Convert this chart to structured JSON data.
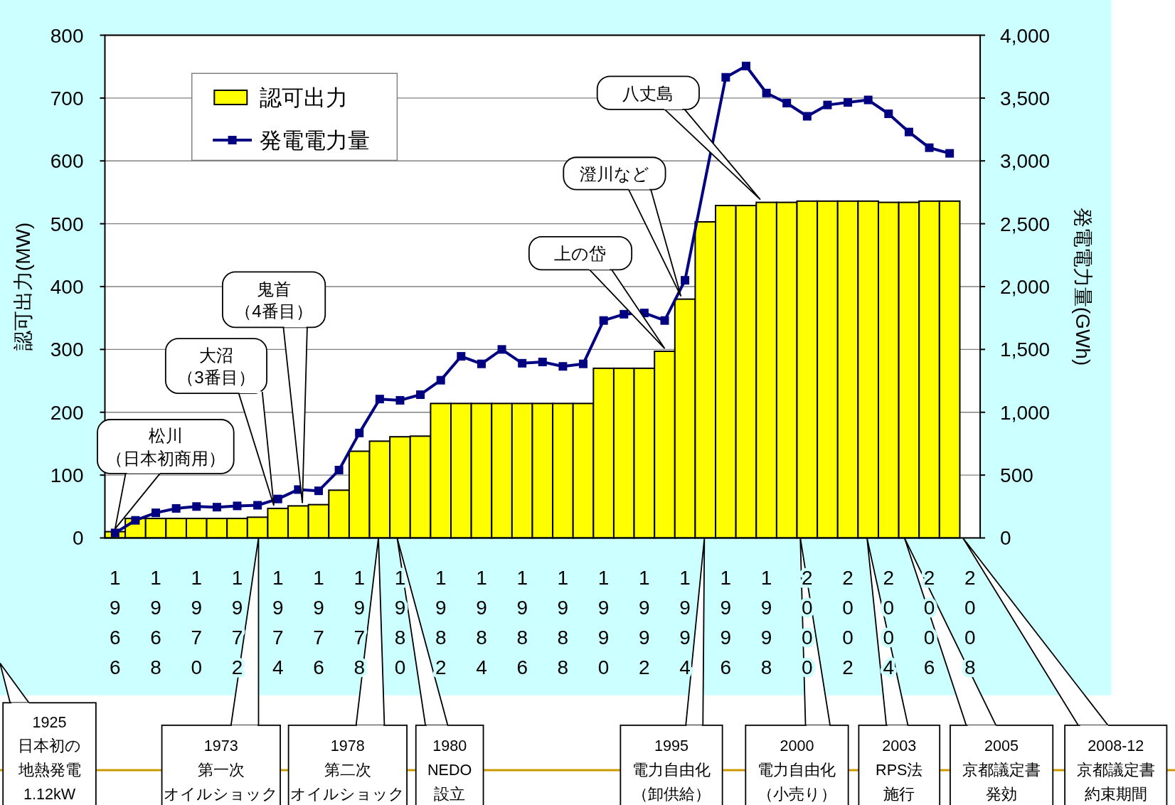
{
  "chart_data": {
    "type": "bar",
    "ylabel": "認可出力(MW)",
    "y2label": "発電電力量(GWh)",
    "categories": [
      "1966",
      null,
      "1968",
      null,
      "1970",
      null,
      "1972",
      null,
      "1974",
      null,
      "1976",
      null,
      "1978",
      null,
      "1980",
      null,
      "1982",
      null,
      "1984",
      null,
      "1986",
      null,
      "1988",
      null,
      "1990",
      null,
      "1992",
      null,
      "1994",
      null,
      "1996",
      null,
      "1998",
      null,
      "2000",
      null,
      "2002",
      null,
      "2004",
      null,
      "2006",
      null,
      "2008"
    ],
    "series": [
      {
        "name": "認可出力",
        "color": "#ffff00",
        "values": [
          10,
          31,
          31,
          31,
          31,
          31,
          31,
          33,
          47,
          51,
          53,
          76,
          138,
          154,
          161,
          162,
          214,
          214,
          214,
          214,
          214,
          214,
          214,
          214,
          270,
          270,
          270,
          297,
          380,
          503,
          529,
          529,
          534,
          534,
          536,
          536,
          536,
          536,
          534,
          534,
          536,
          536,
          null
        ]
      },
      {
        "name": "発電電力量",
        "type": "line",
        "axis": "y2",
        "color": "#000080",
        "marker": "square",
        "values": [
          40,
          140,
          200,
          235,
          250,
          245,
          255,
          260,
          310,
          385,
          375,
          540,
          835,
          1105,
          1095,
          1140,
          1255,
          1445,
          1385,
          1500,
          1390,
          1400,
          1365,
          1385,
          1730,
          1780,
          1790,
          1730,
          2050,
          null,
          3665,
          3755,
          3540,
          3460,
          3355,
          3445,
          3465,
          3485,
          3375,
          3230,
          3105,
          3060,
          null
        ]
      }
    ],
    "ylim": [
      0,
      800
    ],
    "yticks": [
      0,
      100,
      200,
      300,
      400,
      500,
      600,
      700,
      800
    ],
    "y2lim": [
      0,
      4000
    ],
    "y2ticks": [
      0,
      {
        "value": 500,
        "label": "500"
      },
      {
        "value": 1000,
        "label": "1,000"
      },
      {
        "value": 1500,
        "label": "1,500"
      },
      {
        "value": 2000,
        "label": "2,000"
      },
      {
        "value": 2500,
        "label": "2,500"
      },
      {
        "value": 3000,
        "label": "3,000"
      },
      {
        "value": 3500,
        "label": "3,500"
      },
      {
        "value": 4000,
        "label": "4,000"
      }
    ],
    "grid": "y",
    "legend": "top left",
    "annotations": [
      "松川（日本初商用）",
      "大沼（3番目）",
      "鬼首（4番目）",
      "上の岱",
      "澄川など",
      "八丈島",
      "1925日本初の地熱発電1.12kW",
      "1973第一次オイルショック",
      "1978第二次オイルショック",
      "1980NEDO設立",
      "1995電力自由化（卸供給）",
      "2000電力自由化（小売り）",
      "2003RPS法施行",
      "2005京都議定書発効",
      "2008-12京都議定書約束期間"
    ]
  }
}
